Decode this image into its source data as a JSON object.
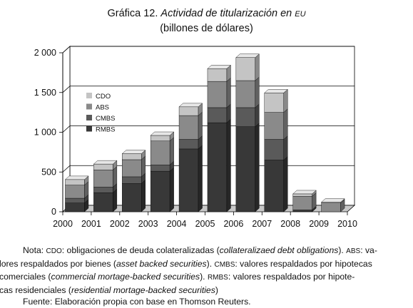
{
  "title": {
    "prefix": "Gráfica 12.",
    "main": "Actividad de titularización en",
    "region": "EU",
    "subtitle": "(billones de dólares)"
  },
  "chart_data": {
    "type": "bar",
    "stacked": true,
    "three_d": true,
    "x_ticks": [
      "2000",
      "2001",
      "2002",
      "2003",
      "2004",
      "2005",
      "2006",
      "2007",
      "2008",
      "2009",
      "2010"
    ],
    "categories": [
      "2001",
      "2002",
      "2003",
      "2004",
      "2005",
      "2006",
      "2007",
      "2008",
      "2009",
      "2010"
    ],
    "series": [
      {
        "name": "RMBS",
        "color": "#383838",
        "values": [
          110,
          240,
          355,
          510,
          790,
          1120,
          1070,
          650,
          10,
          0
        ]
      },
      {
        "name": "CMBS",
        "color": "#5a5a5a",
        "values": [
          60,
          70,
          85,
          80,
          120,
          190,
          240,
          260,
          15,
          0
        ]
      },
      {
        "name": "ABS",
        "color": "#8a8a8a",
        "values": [
          165,
          215,
          215,
          300,
          300,
          330,
          340,
          340,
          170,
          110
        ]
      },
      {
        "name": "CDO",
        "color": "#c4c4c4",
        "values": [
          70,
          75,
          75,
          70,
          110,
          160,
          290,
          245,
          30,
          10
        ]
      }
    ],
    "ylim": [
      0,
      2000
    ],
    "y_ticks": [
      "0",
      "500",
      "1 000",
      "1 500",
      "2 000"
    ],
    "y_tick_values": [
      0,
      500,
      1000,
      1500,
      2000
    ],
    "grid": true,
    "legend_position": "left, inside plot",
    "legend_order": [
      "CDO",
      "ABS",
      "CMBS",
      "RMBS"
    ]
  },
  "notes": {
    "l1_a": "Nota: ",
    "l1_b": "CDO",
    "l1_c": ": obligaciones de deuda colateralizadas (",
    "l1_d": "collateralizaed debt obligations",
    "l1_e": "). ",
    "l1_f": "ABS",
    "l1_g": ": va-",
    "l2_a": "lores respaldados por bienes (",
    "l2_b": "asset backed securities",
    "l2_c": "). ",
    "l2_d": "CMBS",
    "l2_e": ": valores respaldados por hipotecas",
    "l3_a": "comerciales (",
    "l3_b": "commercial mortage-backed securities",
    "l3_c": "). ",
    "l3_d": "RMBS",
    "l3_e": ": valores respaldados por hipote-",
    "l4_a": "cas residenciales (",
    "l4_b": "residential mortage-backed securities",
    "l4_c": ")",
    "source": "Fuente: Elaboración propia con base en Thomson Reuters."
  }
}
